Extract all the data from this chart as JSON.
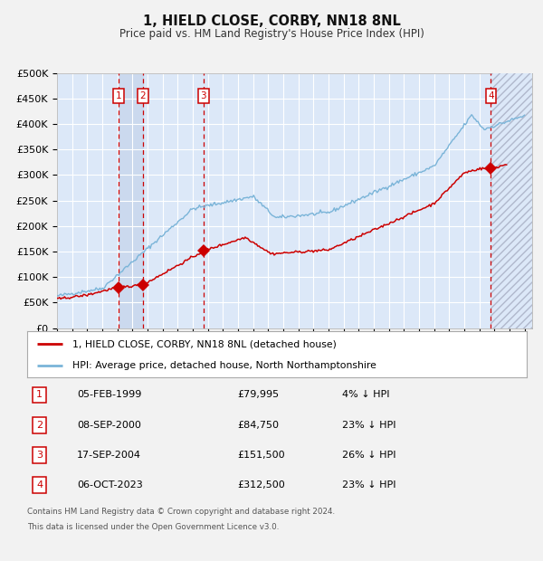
{
  "title": "1, HIELD CLOSE, CORBY, NN18 8NL",
  "subtitle": "Price paid vs. HM Land Registry's House Price Index (HPI)",
  "ylim": [
    0,
    500000
  ],
  "yticks": [
    0,
    50000,
    100000,
    150000,
    200000,
    250000,
    300000,
    350000,
    400000,
    450000,
    500000
  ],
  "ytick_labels": [
    "£0",
    "£50K",
    "£100K",
    "£150K",
    "£200K",
    "£250K",
    "£300K",
    "£350K",
    "£400K",
    "£450K",
    "£500K"
  ],
  "xlim_start": 1995.0,
  "xlim_end": 2026.5,
  "fig_bg_color": "#f2f2f2",
  "plot_bg_color": "#dce8f8",
  "grid_color": "#ffffff",
  "hpi_color": "#7ab4d8",
  "price_color": "#cc0000",
  "dashed_line_color": "#cc0000",
  "transaction_label_color": "#cc0000",
  "transactions": [
    {
      "num": 1,
      "date": "05-FEB-1999",
      "year": 1999.09,
      "price": 79995,
      "label": "1"
    },
    {
      "num": 2,
      "date": "08-SEP-2000",
      "year": 2000.69,
      "price": 84750,
      "label": "2"
    },
    {
      "num": 3,
      "date": "17-SEP-2004",
      "year": 2004.71,
      "price": 151500,
      "label": "3"
    },
    {
      "num": 4,
      "date": "06-OCT-2023",
      "year": 2023.77,
      "price": 312500,
      "label": "4"
    }
  ],
  "footer_line1": "Contains HM Land Registry data © Crown copyright and database right 2024.",
  "footer_line2": "This data is licensed under the Open Government Licence v3.0.",
  "legend_line1": "1, HIELD CLOSE, CORBY, NN18 8NL (detached house)",
  "legend_line2": "HPI: Average price, detached house, North Northamptonshire",
  "table_rows": [
    [
      "1",
      "05-FEB-1999",
      "£79,995",
      "4% ↓ HPI"
    ],
    [
      "2",
      "08-SEP-2000",
      "£84,750",
      "23% ↓ HPI"
    ],
    [
      "3",
      "17-SEP-2004",
      "£151,500",
      "26% ↓ HPI"
    ],
    [
      "4",
      "06-OCT-2023",
      "£312,500",
      "23% ↓ HPI"
    ]
  ]
}
